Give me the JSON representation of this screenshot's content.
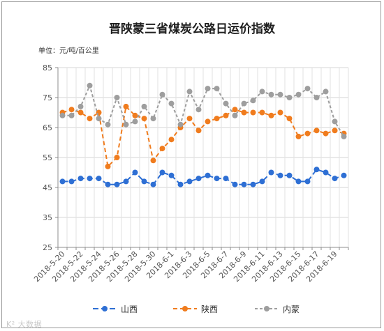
{
  "chart_data": {
    "type": "line",
    "title": "晋陕蒙三省煤炭公路日运价指数",
    "unit_label": "单位：元/吨/百公里",
    "ylim": [
      25,
      85
    ],
    "yticks": [
      25,
      35,
      45,
      55,
      65,
      75,
      85
    ],
    "grid": true,
    "legend_position": "bottom",
    "categories": [
      "2018-5-20",
      "2018-5-21",
      "2018-5-22",
      "2018-5-23",
      "2018-5-24",
      "2018-5-25",
      "2018-5-26",
      "2018-5-27",
      "2018-5-28",
      "2018-5-29",
      "2018-5-30",
      "2018-5-31",
      "2018-6-1",
      "2018-6-2",
      "2018-6-3",
      "2018-6-4",
      "2018-6-5",
      "2018-6-6",
      "2018-6-7",
      "2018-6-8",
      "2018-6-9",
      "2018-6-10",
      "2018-6-11",
      "2018-6-12",
      "2018-6-13",
      "2018-6-14",
      "2018-6-15",
      "2018-6-16",
      "2018-6-17",
      "2018-6-18",
      "2018-6-19",
      "2018-6-20"
    ],
    "tick_labels": [
      "2018-5-20",
      "2018-5-22",
      "2018-5-24",
      "2018-5-26",
      "2018-5-28",
      "2018-5-30",
      "2018-6-1",
      "2018-6-3",
      "2018-6-5",
      "2018-6-7",
      "2018-6-9",
      "2018-6-11",
      "2018-6-13",
      "2018-6-15",
      "2018-6-17",
      "2018-6-19"
    ],
    "series": [
      {
        "name": "山西",
        "color": "#2e6fd4",
        "dash": "8,4",
        "values": [
          47,
          47,
          48,
          48,
          48,
          46,
          46,
          47,
          50,
          47,
          46,
          50,
          49,
          46,
          47,
          48,
          49,
          48,
          48,
          46,
          46,
          46,
          47,
          50,
          49,
          49,
          47,
          47,
          51,
          50,
          48,
          49
        ]
      },
      {
        "name": "陕西",
        "color": "#f07c1e",
        "dash": "6,4",
        "values": [
          70,
          71,
          70,
          68,
          70,
          52,
          55,
          72,
          69,
          68,
          54,
          58,
          61,
          65,
          68,
          64,
          67,
          68,
          69,
          71,
          70,
          70,
          70,
          69,
          70,
          68,
          62,
          63,
          64,
          63,
          64,
          63
        ]
      },
      {
        "name": "内蒙",
        "color": "#9e9e9e",
        "dash": "4,3",
        "values": [
          69,
          69,
          72,
          79,
          68,
          66,
          75,
          66,
          67,
          72,
          68,
          76,
          73,
          66,
          77,
          71,
          78,
          78,
          73,
          69,
          73,
          74,
          77,
          76,
          76,
          75,
          76,
          78,
          75,
          77,
          67,
          62
        ]
      }
    ]
  },
  "watermark": "K² 大数据"
}
